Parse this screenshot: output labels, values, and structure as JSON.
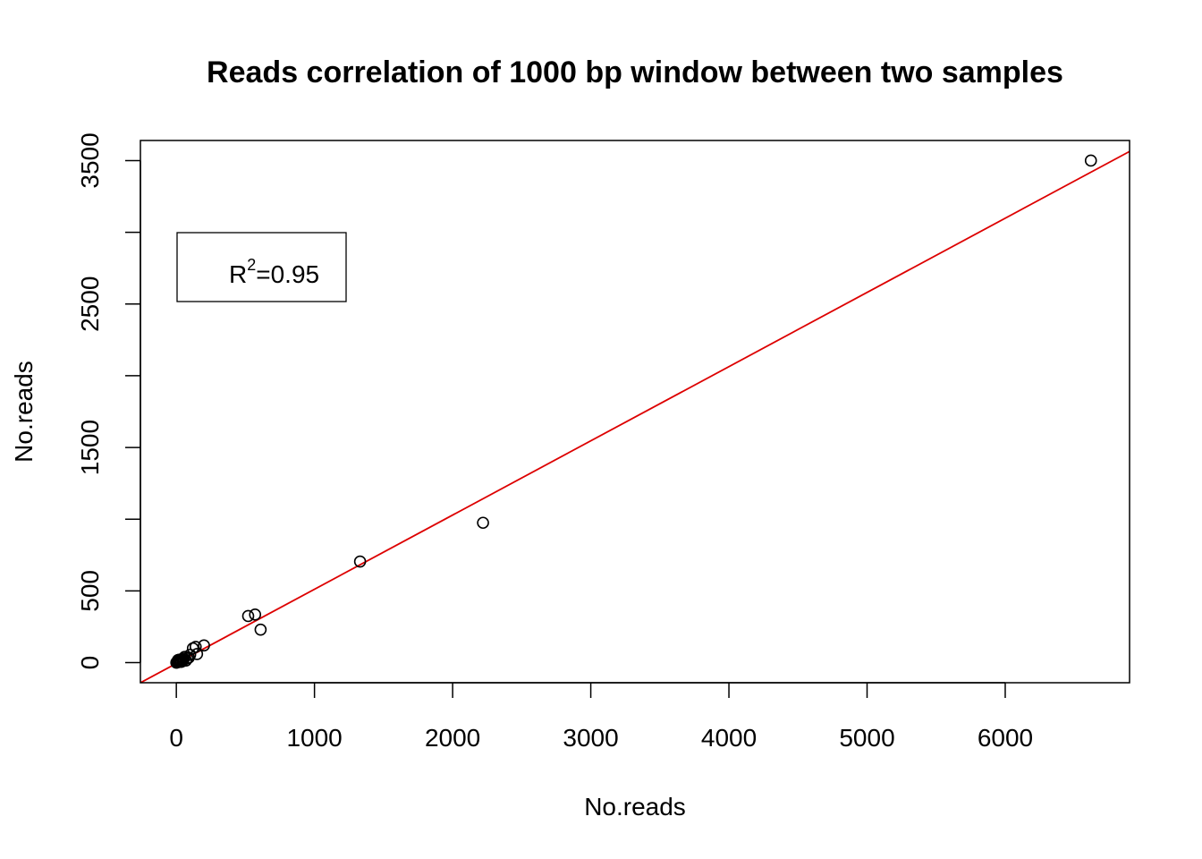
{
  "chart_data": {
    "type": "scatter",
    "title": "Reads correlation of 1000 bp window between two samples",
    "xlabel": "No.reads",
    "ylabel": "No.reads",
    "xlim": [
      -260,
      6900
    ],
    "ylim": [
      -140,
      3640
    ],
    "x_ticks": [
      0,
      1000,
      2000,
      3000,
      4000,
      5000,
      6000
    ],
    "y_ticks": [
      0,
      500,
      1000,
      1500,
      2000,
      2500,
      3000,
      3500
    ],
    "y_tick_labels": [
      "0",
      "500",
      "",
      "1500",
      "",
      "2500",
      "",
      "3500"
    ],
    "grid": false,
    "legend": {
      "position": "top-left",
      "text_main": "R",
      "text_sup": "2",
      "text_rest": "=0.95"
    },
    "fit_line": {
      "color": "#dd0000",
      "slope": 0.5173,
      "intercept": -5.7
    },
    "point_color": "#000000",
    "points": [
      {
        "x": 6620,
        "y": 3500
      },
      {
        "x": 2220,
        "y": 975
      },
      {
        "x": 1330,
        "y": 705
      },
      {
        "x": 520,
        "y": 325
      },
      {
        "x": 570,
        "y": 335
      },
      {
        "x": 610,
        "y": 230
      },
      {
        "x": 200,
        "y": 120
      },
      {
        "x": 140,
        "y": 110
      },
      {
        "x": 120,
        "y": 100
      },
      {
        "x": 150,
        "y": 60
      },
      {
        "x": 100,
        "y": 55
      },
      {
        "x": 80,
        "y": 30
      },
      {
        "x": 60,
        "y": 40
      },
      {
        "x": 50,
        "y": 20
      },
      {
        "x": 40,
        "y": 25
      },
      {
        "x": 30,
        "y": 15
      },
      {
        "x": 25,
        "y": 10
      },
      {
        "x": 20,
        "y": 20
      },
      {
        "x": 15,
        "y": 5
      },
      {
        "x": 10,
        "y": 10
      },
      {
        "x": 8,
        "y": 2
      },
      {
        "x": 5,
        "y": 5
      },
      {
        "x": 3,
        "y": 1
      },
      {
        "x": 0,
        "y": 0
      },
      {
        "x": 70,
        "y": 15
      },
      {
        "x": 90,
        "y": 35
      },
      {
        "x": 35,
        "y": 5
      },
      {
        "x": 45,
        "y": 10
      },
      {
        "x": 55,
        "y": 28
      },
      {
        "x": 12,
        "y": 18
      }
    ]
  }
}
